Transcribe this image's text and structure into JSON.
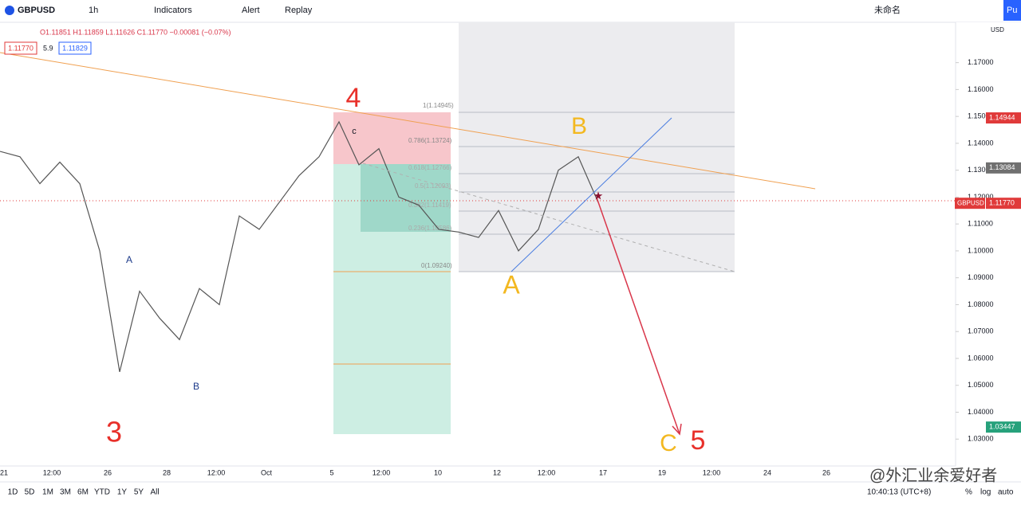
{
  "toolbar": {
    "symbol": "GBPUSD",
    "interval": "1h",
    "indicators": "Indicators",
    "alert": "Alert",
    "replay": "Replay",
    "layout_name": "未命名",
    "publish": "Pu"
  },
  "legend": {
    "ohlc": "O1.11851 H1.11859 L1.11626 C1.11770 −0.00081 (−0.07%)",
    "bid": "1.11770",
    "spread": "5.9",
    "ask": "1.11829"
  },
  "chart_data": {
    "type": "line",
    "color": "#555555",
    "values": [
      1.137,
      1.135,
      1.125,
      1.133,
      1.125,
      1.1,
      1.055,
      1.085,
      1.075,
      1.067,
      1.086,
      1.08,
      1.113,
      1.108,
      1.118,
      1.128,
      1.135,
      1.148,
      1.132,
      1.138,
      1.12,
      1.117,
      1.108,
      1.107,
      1.105,
      1.115,
      1.1,
      1.108,
      1.13,
      1.135,
      1.118
    ],
    "currency": "USD",
    "ylim": [
      1.02,
      1.185
    ],
    "yticks": [
      {
        "value": 1.17,
        "label": "1.17000"
      },
      {
        "value": 1.16,
        "label": "1.16000"
      },
      {
        "value": 1.15,
        "label": "1.15000"
      },
      {
        "value": 1.14,
        "label": "1.14000"
      },
      {
        "value": 1.13,
        "label": "1.13000"
      },
      {
        "value": 1.12,
        "label": "1.12000"
      },
      {
        "value": 1.11,
        "label": "1.11000"
      },
      {
        "value": 1.1,
        "label": "1.10000"
      },
      {
        "value": 1.09,
        "label": "1.09000"
      },
      {
        "value": 1.08,
        "label": "1.08000"
      },
      {
        "value": 1.07,
        "label": "1.07000"
      },
      {
        "value": 1.06,
        "label": "1.06000"
      },
      {
        "value": 1.05,
        "label": "1.05000"
      },
      {
        "value": 1.04,
        "label": "1.04000"
      },
      {
        "value": 1.03,
        "label": "1.03000"
      }
    ],
    "price_badges": [
      {
        "value": 1.14944,
        "label": "1.14944",
        "color": "#e03a3a"
      },
      {
        "value": 1.13084,
        "label": "1.13084",
        "color": "#707070"
      },
      {
        "value": 1.1177,
        "label": "1.11770",
        "color": "#e03a3a"
      },
      {
        "value": 1.03447,
        "label": "1.03447",
        "color": "#26a17b"
      }
    ],
    "symbol_badge": "GBPUSD",
    "time_labels": [
      "21",
      "12:00",
      "26",
      "28",
      "12:00",
      "Oct",
      "5",
      "12:00",
      "10",
      "12",
      "12:00",
      "17",
      "19",
      "12:00",
      "24",
      "26"
    ]
  },
  "fib_labels": [
    "1(1.14945)",
    "0.786(1.13724)",
    "0.618(1.12766)",
    "0.5(1.12093)",
    "0.382(1.11419)",
    "0.236(1.10586)",
    "0(1.09240)"
  ],
  "annotations": [
    "4",
    "B",
    "A",
    "3",
    "C",
    "5",
    "A",
    "B",
    "c"
  ],
  "bottom_bar": {
    "ranges": [
      "1D",
      "5D",
      "1M",
      "3M",
      "6M",
      "YTD",
      "1Y",
      "5Y",
      "All"
    ],
    "clock": "10:40:13 (UTC+8)",
    "percent": "%",
    "log": "log",
    "auto": "auto"
  },
  "watermark": "@外汇业余爱好者"
}
